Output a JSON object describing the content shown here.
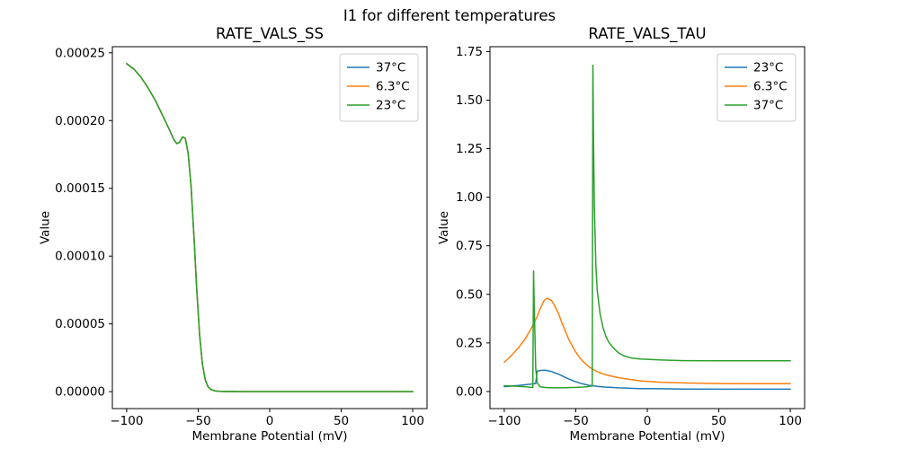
{
  "figure": {
    "title": "I1 for different temperatures",
    "background": "#ffffff"
  },
  "chart_data": [
    {
      "type": "line",
      "title": "RATE_VALS_SS",
      "xlabel": "Membrane Potential (mV)",
      "ylabel": "Value",
      "xlim": [
        -110,
        110
      ],
      "ylim": [
        -1.25e-05,
        0.0002545
      ],
      "grid": false,
      "legend_position": "upper-right",
      "xticks": [
        -100,
        -50,
        0,
        50,
        100
      ],
      "xtick_labels": [
        "−100",
        "−50",
        "0",
        "50",
        "100"
      ],
      "yticks": [
        0,
        5e-05,
        0.0001,
        0.00015,
        0.0002,
        0.00025
      ],
      "ytick_labels": [
        "0.00000",
        "0.00005",
        "0.00010",
        "0.00015",
        "0.00020",
        "0.00025"
      ],
      "series": [
        {
          "name": "37°C",
          "color": "#1f77b4",
          "x": [
            -100,
            -95,
            -90,
            -85,
            -80,
            -75,
            -70,
            -67,
            -65,
            -63,
            -61,
            -59,
            -57,
            -55,
            -53,
            -51,
            -49,
            -47,
            -45,
            -43,
            -41,
            -38,
            -35,
            -30,
            -20,
            -10,
            0,
            25,
            50,
            75,
            100
          ],
          "y": [
            0.000242,
            0.000238,
            0.000232,
            0.000224,
            0.000215,
            0.000204,
            0.000193,
            0.000186,
            0.000183,
            0.000184,
            0.000188,
            0.000187,
            0.000176,
            0.000152,
            0.000115,
            7.5e-05,
            4.2e-05,
            2e-05,
            8.5e-06,
            3.5e-06,
            1.5e-06,
            5e-07,
            2e-07,
            1e-07,
            0,
            0,
            0,
            0,
            0,
            0,
            0
          ]
        },
        {
          "name": "6.3°C",
          "color": "#ff7f0e",
          "x": [
            -100,
            -95,
            -90,
            -85,
            -80,
            -75,
            -70,
            -67,
            -65,
            -63,
            -61,
            -59,
            -57,
            -55,
            -53,
            -51,
            -49,
            -47,
            -45,
            -43,
            -41,
            -38,
            -35,
            -30,
            -20,
            -10,
            0,
            25,
            50,
            75,
            100
          ],
          "y": [
            0.000242,
            0.000238,
            0.000232,
            0.000224,
            0.000215,
            0.000204,
            0.000193,
            0.000186,
            0.000183,
            0.000184,
            0.000188,
            0.000187,
            0.000176,
            0.000152,
            0.000115,
            7.5e-05,
            4.2e-05,
            2e-05,
            8.5e-06,
            3.5e-06,
            1.5e-06,
            5e-07,
            2e-07,
            1e-07,
            0,
            0,
            0,
            0,
            0,
            0,
            0
          ]
        },
        {
          "name": "23°C",
          "color": "#2ca02c",
          "x": [
            -100,
            -95,
            -90,
            -85,
            -80,
            -75,
            -70,
            -67,
            -65,
            -63,
            -61,
            -59,
            -57,
            -55,
            -53,
            -51,
            -49,
            -47,
            -45,
            -43,
            -41,
            -38,
            -35,
            -30,
            -20,
            -10,
            0,
            25,
            50,
            75,
            100
          ],
          "y": [
            0.000242,
            0.000238,
            0.000232,
            0.000224,
            0.000215,
            0.000204,
            0.000193,
            0.000186,
            0.000183,
            0.000184,
            0.000188,
            0.000187,
            0.000176,
            0.000152,
            0.000115,
            7.5e-05,
            4.2e-05,
            2e-05,
            8.5e-06,
            3.5e-06,
            1.5e-06,
            5e-07,
            2e-07,
            1e-07,
            0,
            0,
            0,
            0,
            0,
            0,
            0
          ]
        }
      ]
    },
    {
      "type": "line",
      "title": "RATE_VALS_TAU",
      "xlabel": "Membrane Potential (mV)",
      "ylabel": "Value",
      "xlim": [
        -110,
        110
      ],
      "ylim": [
        -0.088,
        1.775
      ],
      "grid": false,
      "legend_position": "upper-right",
      "xticks": [
        -100,
        -50,
        0,
        50,
        100
      ],
      "xtick_labels": [
        "−100",
        "−50",
        "0",
        "50",
        "100"
      ],
      "yticks": [
        0,
        0.25,
        0.5,
        0.75,
        1.0,
        1.25,
        1.5,
        1.75
      ],
      "ytick_labels": [
        "0.00",
        "0.25",
        "0.50",
        "0.75",
        "1.00",
        "1.25",
        "1.50",
        "1.75"
      ],
      "series": [
        {
          "name": "23°C",
          "color": "#1f77b4",
          "x": [
            -100,
            -95,
            -90,
            -85,
            -80,
            -78,
            -77,
            -75,
            -72,
            -70,
            -67,
            -65,
            -62,
            -60,
            -57,
            -55,
            -52,
            -50,
            -47,
            -45,
            -42,
            -40,
            -35,
            -30,
            -25,
            -20,
            -15,
            -10,
            -5,
            0,
            10,
            25,
            50,
            75,
            100
          ],
          "y": [
            0.025,
            0.028,
            0.031,
            0.035,
            0.039,
            0.041,
            0.105,
            0.108,
            0.11,
            0.108,
            0.103,
            0.097,
            0.089,
            0.082,
            0.072,
            0.065,
            0.056,
            0.05,
            0.043,
            0.039,
            0.034,
            0.031,
            0.026,
            0.023,
            0.021,
            0.019,
            0.018,
            0.016,
            0.015,
            0.015,
            0.014,
            0.013,
            0.012,
            0.012,
            0.012
          ]
        },
        {
          "name": "6.3°C",
          "color": "#ff7f0e",
          "x": [
            -100,
            -95,
            -90,
            -85,
            -80,
            -78,
            -77,
            -75,
            -72,
            -70,
            -67,
            -65,
            -62,
            -60,
            -57,
            -55,
            -52,
            -50,
            -47,
            -45,
            -42,
            -40,
            -35,
            -30,
            -25,
            -20,
            -15,
            -10,
            -5,
            0,
            10,
            25,
            50,
            75,
            100
          ],
          "y": [
            0.15,
            0.185,
            0.225,
            0.275,
            0.34,
            0.37,
            0.385,
            0.425,
            0.47,
            0.48,
            0.468,
            0.445,
            0.4,
            0.36,
            0.305,
            0.27,
            0.228,
            0.203,
            0.172,
            0.155,
            0.135,
            0.123,
            0.102,
            0.088,
            0.079,
            0.071,
            0.065,
            0.06,
            0.055,
            0.052,
            0.047,
            0.044,
            0.041,
            0.04,
            0.04
          ]
        },
        {
          "name": "37°C",
          "color": "#2ca02c",
          "x": [
            -100,
            -95,
            -90,
            -85,
            -82,
            -80,
            -79.5,
            -79,
            -78,
            -77,
            -75,
            -72,
            -70,
            -65,
            -60,
            -55,
            -50,
            -45,
            -42,
            -40,
            -39,
            -38.5,
            -38,
            -37.5,
            -37,
            -36,
            -35,
            -33,
            -31,
            -29,
            -27,
            -25,
            -22,
            -20,
            -17,
            -15,
            -12,
            -10,
            -5,
            0,
            10,
            25,
            50,
            75,
            100
          ],
          "y": [
            0.03,
            0.028,
            0.026,
            0.024,
            0.022,
            0.021,
            0.62,
            0.43,
            0.12,
            0.045,
            0.025,
            0.021,
            0.02,
            0.019,
            0.019,
            0.02,
            0.021,
            0.023,
            0.025,
            0.027,
            0.028,
            0.03,
            1.68,
            1.25,
            0.96,
            0.66,
            0.52,
            0.4,
            0.33,
            0.285,
            0.255,
            0.235,
            0.212,
            0.198,
            0.186,
            0.18,
            0.174,
            0.171,
            0.167,
            0.166,
            0.162,
            0.159,
            0.158,
            0.158,
            0.158
          ]
        }
      ]
    }
  ]
}
